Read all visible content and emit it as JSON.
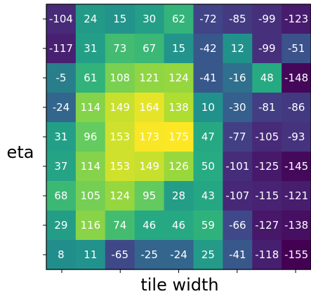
{
  "chart_data": {
    "type": "heatmap",
    "xlabel": "tile width",
    "ylabel": "eta",
    "colormap": "viridis",
    "value_range": [
      -155,
      175
    ],
    "rows": [
      [
        -104,
        24,
        15,
        30,
        62,
        -72,
        -85,
        -99,
        -123
      ],
      [
        -117,
        31,
        73,
        67,
        15,
        -42,
        12,
        -99,
        -51
      ],
      [
        -5,
        61,
        108,
        121,
        124,
        -41,
        -16,
        48,
        -148
      ],
      [
        -24,
        114,
        149,
        164,
        138,
        10,
        -30,
        -81,
        -86
      ],
      [
        31,
        96,
        153,
        173,
        175,
        47,
        -77,
        -105,
        -93
      ],
      [
        37,
        114,
        153,
        149,
        126,
        50,
        -101,
        -125,
        -145
      ],
      [
        68,
        105,
        124,
        95,
        28,
        43,
        -107,
        -115,
        -121
      ],
      [
        29,
        116,
        74,
        46,
        46,
        59,
        -66,
        -127,
        -138
      ],
      [
        8,
        11,
        -65,
        -25,
        -24,
        25,
        -41,
        -118,
        -155
      ]
    ]
  }
}
